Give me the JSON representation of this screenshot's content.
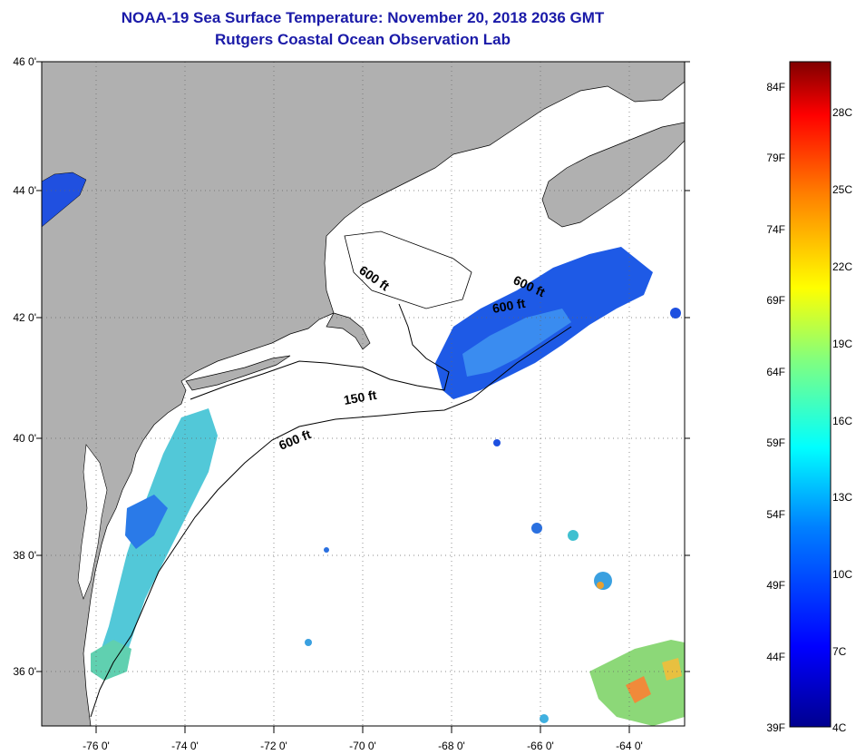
{
  "title": {
    "line1": "NOAA-19 Sea Surface Temperature:  November 20, 2018 2036 GMT",
    "line2": "Rutgers Coastal Ocean Observation Lab"
  },
  "axes": {
    "lat_labels": [
      "46 0'",
      "44 0'",
      "42 0'",
      "40 0'",
      "38 0'",
      "36 0'"
    ],
    "lon_labels": [
      "-76 0'",
      "-74 0'",
      "-72 0'",
      "-70 0'",
      "-68 0'",
      "-66 0'",
      "-64 0'"
    ]
  },
  "contours": {
    "label_600a": "600 ft",
    "label_600b": "600 ft",
    "label_600c": "600 ft",
    "label_150": "150 ft",
    "label_600d": "600 ft"
  },
  "colorbar": {
    "fahrenheit": [
      "84F",
      "79F",
      "74F",
      "69F",
      "64F",
      "59F",
      "54F",
      "49F",
      "44F",
      "39F"
    ],
    "celsius": [
      "28C",
      "25C",
      "22C",
      "19C",
      "16C",
      "13C",
      "10C",
      "7C",
      "4C"
    ]
  },
  "colors": {
    "land": "#b0b0b0",
    "water": "#ffffff",
    "title": "#1a1aa8",
    "gridline": "#555555"
  }
}
